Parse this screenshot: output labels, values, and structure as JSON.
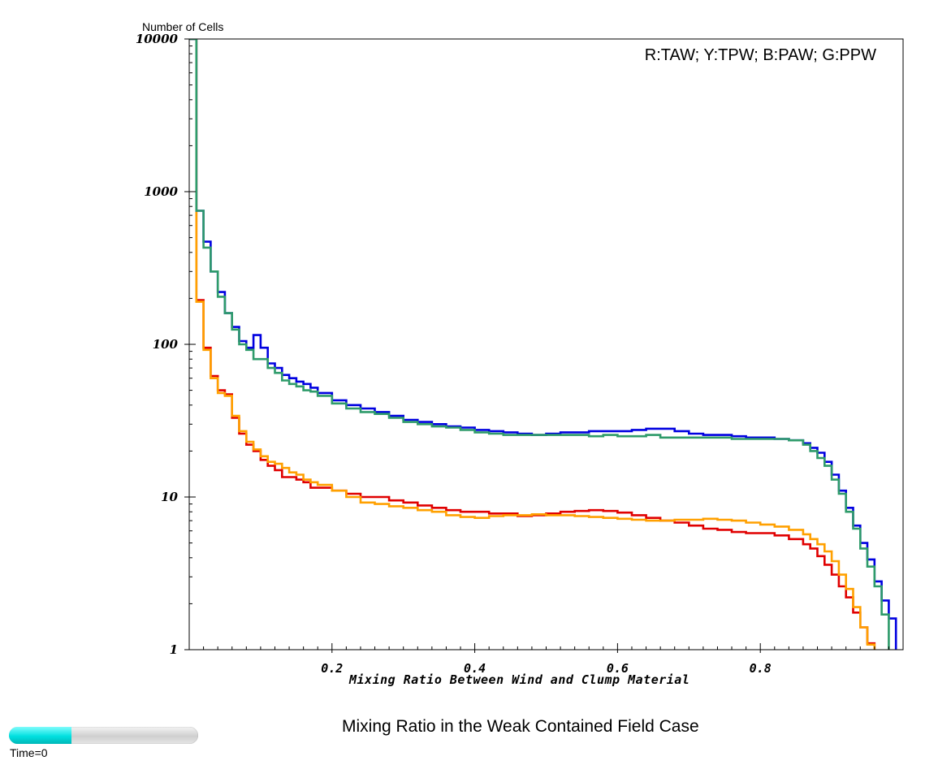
{
  "chart_data": {
    "type": "line",
    "title": "",
    "caption": "Mixing Ratio in the Weak Contained Field Case",
    "xlabel": "Mixing Ratio Between Wind and Clump Material",
    "ylabel": "Number of Cells",
    "legend_text": "R:TAW; Y:TPW; B:PAW; G:PPW",
    "legend_placement": "top-right",
    "x_scale": "linear",
    "y_scale": "log",
    "xlim": [
      0,
      1
    ],
    "ylim": [
      1,
      10000
    ],
    "grid": false,
    "x_ticks": [
      {
        "value": 0.2,
        "label": "0.2"
      },
      {
        "value": 0.4,
        "label": "0.4"
      },
      {
        "value": 0.6,
        "label": "0.6"
      },
      {
        "value": 0.8,
        "label": "0.8"
      }
    ],
    "y_ticks": [
      {
        "value": 1,
        "label": "1"
      },
      {
        "value": 10,
        "label": "10"
      },
      {
        "value": 100,
        "label": "100"
      },
      {
        "value": 1000,
        "label": "1000"
      },
      {
        "value": 10000,
        "label": "10000"
      }
    ],
    "series": [
      {
        "key": "TAW",
        "color": "#e00000",
        "points": [
          [
            0,
            10000
          ],
          [
            0.01,
            195
          ],
          [
            0.02,
            95
          ],
          [
            0.03,
            62
          ],
          [
            0.04,
            50
          ],
          [
            0.05,
            47
          ],
          [
            0.06,
            33
          ],
          [
            0.07,
            26
          ],
          [
            0.08,
            22
          ],
          [
            0.09,
            20
          ],
          [
            0.1,
            17.5
          ],
          [
            0.11,
            16
          ],
          [
            0.12,
            15
          ],
          [
            0.13,
            13.5
          ],
          [
            0.14,
            13.5
          ],
          [
            0.15,
            13
          ],
          [
            0.16,
            12.5
          ],
          [
            0.17,
            11.5
          ],
          [
            0.18,
            11.5
          ],
          [
            0.2,
            11
          ],
          [
            0.22,
            10.5
          ],
          [
            0.24,
            10
          ],
          [
            0.26,
            10
          ],
          [
            0.28,
            9.5
          ],
          [
            0.3,
            9.2
          ],
          [
            0.32,
            8.8
          ],
          [
            0.34,
            8.5
          ],
          [
            0.36,
            8.2
          ],
          [
            0.38,
            8
          ],
          [
            0.4,
            8
          ],
          [
            0.42,
            7.8
          ],
          [
            0.44,
            7.8
          ],
          [
            0.46,
            7.5
          ],
          [
            0.48,
            7.6
          ],
          [
            0.5,
            7.8
          ],
          [
            0.52,
            8
          ],
          [
            0.54,
            8.1
          ],
          [
            0.56,
            8.2
          ],
          [
            0.58,
            8.1
          ],
          [
            0.6,
            7.9
          ],
          [
            0.62,
            7.6
          ],
          [
            0.64,
            7.3
          ],
          [
            0.66,
            7
          ],
          [
            0.68,
            6.8
          ],
          [
            0.7,
            6.5
          ],
          [
            0.72,
            6.2
          ],
          [
            0.74,
            6.1
          ],
          [
            0.76,
            5.9
          ],
          [
            0.78,
            5.8
          ],
          [
            0.8,
            5.8
          ],
          [
            0.82,
            5.6
          ],
          [
            0.84,
            5.3
          ],
          [
            0.86,
            4.9
          ],
          [
            0.87,
            4.6
          ],
          [
            0.88,
            4.1
          ],
          [
            0.89,
            3.6
          ],
          [
            0.9,
            3.1
          ],
          [
            0.91,
            2.6
          ],
          [
            0.92,
            2.2
          ],
          [
            0.93,
            1.75
          ],
          [
            0.94,
            1.4
          ],
          [
            0.95,
            1.1
          ]
        ]
      },
      {
        "key": "TPW",
        "color": "#ffa000",
        "points": [
          [
            0,
            10000
          ],
          [
            0.01,
            190
          ],
          [
            0.02,
            92
          ],
          [
            0.03,
            60
          ],
          [
            0.04,
            48
          ],
          [
            0.05,
            46
          ],
          [
            0.06,
            34
          ],
          [
            0.07,
            27
          ],
          [
            0.08,
            23
          ],
          [
            0.09,
            20.5
          ],
          [
            0.1,
            18.5
          ],
          [
            0.11,
            17
          ],
          [
            0.12,
            16.5
          ],
          [
            0.13,
            15.5
          ],
          [
            0.14,
            14.5
          ],
          [
            0.15,
            14
          ],
          [
            0.16,
            13
          ],
          [
            0.17,
            12.5
          ],
          [
            0.18,
            12
          ],
          [
            0.2,
            11
          ],
          [
            0.22,
            10
          ],
          [
            0.24,
            9.2
          ],
          [
            0.26,
            9
          ],
          [
            0.28,
            8.7
          ],
          [
            0.3,
            8.5
          ],
          [
            0.32,
            8.2
          ],
          [
            0.34,
            8
          ],
          [
            0.36,
            7.6
          ],
          [
            0.38,
            7.4
          ],
          [
            0.4,
            7.3
          ],
          [
            0.42,
            7.5
          ],
          [
            0.44,
            7.6
          ],
          [
            0.46,
            7.6
          ],
          [
            0.48,
            7.7
          ],
          [
            0.5,
            7.6
          ],
          [
            0.52,
            7.6
          ],
          [
            0.54,
            7.5
          ],
          [
            0.56,
            7.4
          ],
          [
            0.58,
            7.3
          ],
          [
            0.6,
            7.2
          ],
          [
            0.62,
            7.1
          ],
          [
            0.64,
            7.0
          ],
          [
            0.66,
            7.0
          ],
          [
            0.68,
            7.1
          ],
          [
            0.7,
            7.1
          ],
          [
            0.72,
            7.2
          ],
          [
            0.74,
            7.1
          ],
          [
            0.76,
            7.0
          ],
          [
            0.78,
            6.8
          ],
          [
            0.8,
            6.6
          ],
          [
            0.82,
            6.4
          ],
          [
            0.84,
            6.1
          ],
          [
            0.86,
            5.7
          ],
          [
            0.87,
            5.3
          ],
          [
            0.88,
            4.9
          ],
          [
            0.89,
            4.4
          ],
          [
            0.9,
            3.8
          ],
          [
            0.91,
            3.1
          ],
          [
            0.92,
            2.5
          ],
          [
            0.93,
            1.9
          ],
          [
            0.94,
            1.4
          ],
          [
            0.95,
            1.08
          ]
        ]
      },
      {
        "key": "PAW",
        "color": "#0000e0",
        "points": [
          [
            0,
            10000
          ],
          [
            0.01,
            750
          ],
          [
            0.02,
            470
          ],
          [
            0.03,
            300
          ],
          [
            0.04,
            220
          ],
          [
            0.05,
            160
          ],
          [
            0.06,
            130
          ],
          [
            0.07,
            105
          ],
          [
            0.08,
            95
          ],
          [
            0.09,
            115
          ],
          [
            0.1,
            95
          ],
          [
            0.11,
            75
          ],
          [
            0.12,
            70
          ],
          [
            0.13,
            63
          ],
          [
            0.14,
            60
          ],
          [
            0.15,
            57
          ],
          [
            0.16,
            55
          ],
          [
            0.17,
            52
          ],
          [
            0.18,
            48
          ],
          [
            0.2,
            43
          ],
          [
            0.22,
            40
          ],
          [
            0.24,
            38
          ],
          [
            0.26,
            36
          ],
          [
            0.28,
            34
          ],
          [
            0.3,
            32
          ],
          [
            0.32,
            31
          ],
          [
            0.34,
            30
          ],
          [
            0.36,
            29
          ],
          [
            0.38,
            28.5
          ],
          [
            0.4,
            27.5
          ],
          [
            0.42,
            27
          ],
          [
            0.44,
            26.5
          ],
          [
            0.46,
            26
          ],
          [
            0.48,
            25.5
          ],
          [
            0.5,
            26
          ],
          [
            0.52,
            26.5
          ],
          [
            0.54,
            26.5
          ],
          [
            0.56,
            27
          ],
          [
            0.58,
            27
          ],
          [
            0.6,
            27
          ],
          [
            0.62,
            27.5
          ],
          [
            0.64,
            28
          ],
          [
            0.66,
            28
          ],
          [
            0.68,
            27
          ],
          [
            0.7,
            26
          ],
          [
            0.72,
            25.5
          ],
          [
            0.74,
            25.5
          ],
          [
            0.76,
            25
          ],
          [
            0.78,
            24.5
          ],
          [
            0.8,
            24.5
          ],
          [
            0.82,
            24
          ],
          [
            0.84,
            23.5
          ],
          [
            0.86,
            22.5
          ],
          [
            0.87,
            21
          ],
          [
            0.88,
            19.5
          ],
          [
            0.89,
            17
          ],
          [
            0.9,
            14
          ],
          [
            0.91,
            11
          ],
          [
            0.92,
            8.5
          ],
          [
            0.93,
            6.5
          ],
          [
            0.94,
            5
          ],
          [
            0.95,
            3.9
          ],
          [
            0.96,
            2.8
          ],
          [
            0.97,
            2.1
          ],
          [
            0.98,
            1.6
          ]
        ]
      },
      {
        "key": "PPW",
        "color": "#2e9b6a",
        "points": [
          [
            0,
            10000
          ],
          [
            0.01,
            750
          ],
          [
            0.02,
            430
          ],
          [
            0.03,
            300
          ],
          [
            0.04,
            205
          ],
          [
            0.05,
            160
          ],
          [
            0.06,
            125
          ],
          [
            0.07,
            100
          ],
          [
            0.08,
            92
          ],
          [
            0.09,
            80
          ],
          [
            0.1,
            80
          ],
          [
            0.11,
            70
          ],
          [
            0.12,
            65
          ],
          [
            0.13,
            58
          ],
          [
            0.14,
            55
          ],
          [
            0.15,
            53
          ],
          [
            0.16,
            50
          ],
          [
            0.17,
            49
          ],
          [
            0.18,
            46
          ],
          [
            0.2,
            41
          ],
          [
            0.22,
            38
          ],
          [
            0.24,
            36
          ],
          [
            0.26,
            35
          ],
          [
            0.28,
            33
          ],
          [
            0.3,
            31
          ],
          [
            0.32,
            30
          ],
          [
            0.34,
            29
          ],
          [
            0.36,
            28.5
          ],
          [
            0.38,
            27.5
          ],
          [
            0.4,
            26.5
          ],
          [
            0.42,
            26
          ],
          [
            0.44,
            25.5
          ],
          [
            0.46,
            25.5
          ],
          [
            0.48,
            25.5
          ],
          [
            0.5,
            25.5
          ],
          [
            0.52,
            25.5
          ],
          [
            0.54,
            25.5
          ],
          [
            0.56,
            25
          ],
          [
            0.58,
            25.5
          ],
          [
            0.6,
            25
          ],
          [
            0.62,
            25
          ],
          [
            0.64,
            25.5
          ],
          [
            0.66,
            24.5
          ],
          [
            0.68,
            24.5
          ],
          [
            0.7,
            24.5
          ],
          [
            0.72,
            24.5
          ],
          [
            0.74,
            24.5
          ],
          [
            0.76,
            24
          ],
          [
            0.78,
            24
          ],
          [
            0.8,
            24
          ],
          [
            0.82,
            24
          ],
          [
            0.84,
            23.5
          ],
          [
            0.86,
            22
          ],
          [
            0.87,
            20
          ],
          [
            0.88,
            18
          ],
          [
            0.89,
            16
          ],
          [
            0.9,
            13
          ],
          [
            0.91,
            10.5
          ],
          [
            0.92,
            8
          ],
          [
            0.93,
            6.2
          ],
          [
            0.94,
            4.6
          ],
          [
            0.95,
            3.5
          ],
          [
            0.96,
            2.6
          ],
          [
            0.97,
            1.7
          ],
          [
            0.98,
            0.9
          ]
        ]
      }
    ]
  },
  "time_slider": {
    "label": "Time=0",
    "fill_fraction": 0.33
  }
}
